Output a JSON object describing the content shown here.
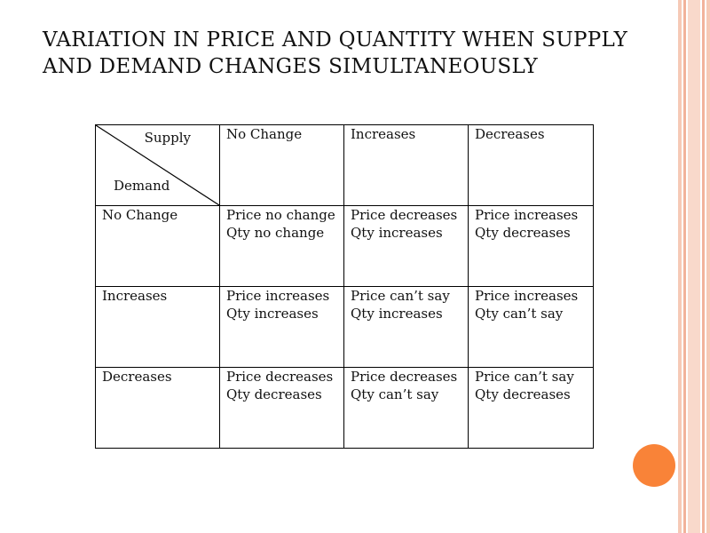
{
  "slide": {
    "title": "VARIATION IN PRICE AND QUANTITY WHEN SUPPLY AND DEMAND CHANGES SIMULTANEOUSLY"
  },
  "table": {
    "corner_supply": "Supply",
    "corner_demand": "Demand",
    "columns": [
      "No Change",
      "Increases",
      "Decreases"
    ],
    "rows": [
      {
        "label": "No Change",
        "cells": [
          {
            "price": "Price no change",
            "qty": "Qty no change"
          },
          {
            "price": "Price decreases",
            "qty": "Qty increases"
          },
          {
            "price": "Price increases",
            "qty": "Qty decreases"
          }
        ]
      },
      {
        "label": "Increases",
        "cells": [
          {
            "price": "Price increases",
            "qty": "Qty increases"
          },
          {
            "price": "Price can’t say",
            "qty": "Qty increases"
          },
          {
            "price": "Price increases",
            "qty": "Qty can’t say"
          }
        ]
      },
      {
        "label": "Decreases",
        "cells": [
          {
            "price": "Price decreases",
            "qty": "Qty decreases"
          },
          {
            "price": "Price decreases",
            "qty": "Qty can’t say"
          },
          {
            "price": "Price can’t say",
            "qty": "Qty decreases"
          }
        ]
      }
    ]
  },
  "colors": {
    "value_text": "#e36c0a",
    "accent_circle": "#f98338",
    "stripe": "#f2b39b"
  }
}
